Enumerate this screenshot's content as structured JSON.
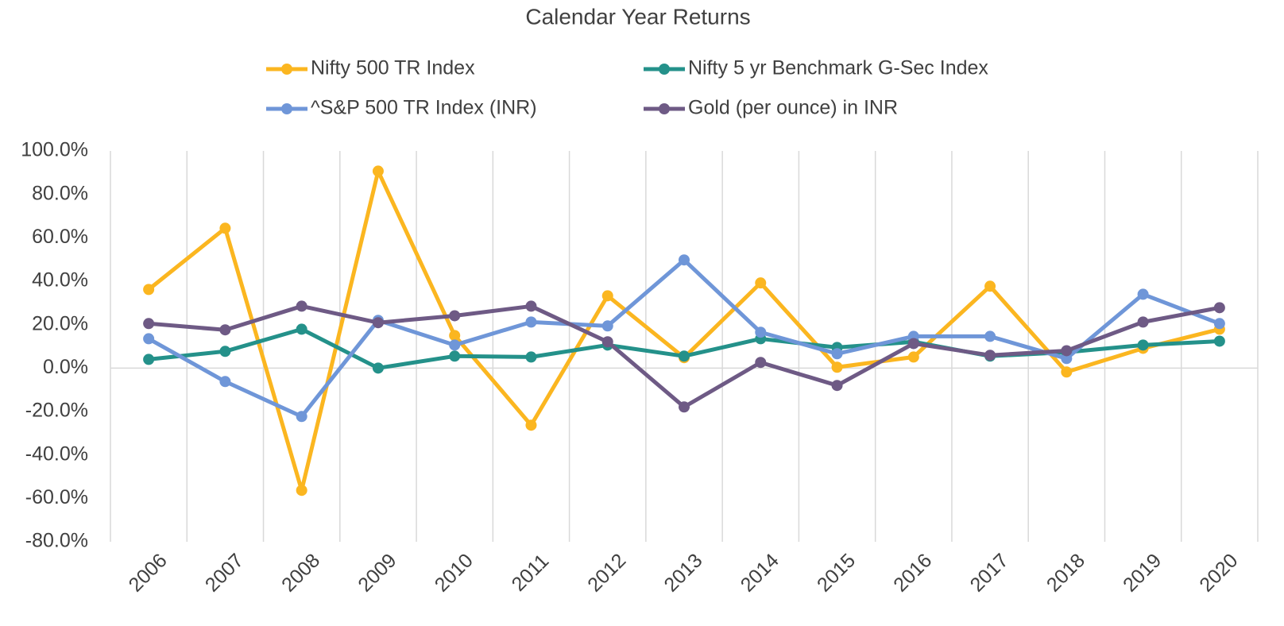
{
  "chart_data": {
    "type": "line",
    "title": "Calendar Year Returns",
    "categories": [
      "2006",
      "2007",
      "2008",
      "2009",
      "2010",
      "2011",
      "2012",
      "2013",
      "2014",
      "2015",
      "2016",
      "2017",
      "2018",
      "2019",
      "2020"
    ],
    "series": [
      {
        "name": "Nifty 500 TR Index",
        "color": "#fbb620",
        "values": [
          36.2,
          64.4,
          -56.3,
          90.7,
          15.0,
          -26.3,
          33.3,
          4.8,
          39.2,
          0.4,
          5.1,
          37.7,
          -1.8,
          9.1,
          17.9
        ]
      },
      {
        "name": "Nifty 5 yr Benchmark G-Sec Index",
        "color": "#24918a",
        "values": [
          4.0,
          7.7,
          17.9,
          0.0,
          5.5,
          5.1,
          10.6,
          5.5,
          13.5,
          9.5,
          12.1,
          5.5,
          7.3,
          10.6,
          12.4
        ]
      },
      {
        "name": "^S&P 500 TR Index (INR)",
        "color": "#6f96d8",
        "values": [
          13.5,
          -6.2,
          -22.3,
          22.0,
          10.6,
          21.2,
          19.4,
          49.8,
          16.5,
          6.6,
          14.6,
          14.6,
          4.4,
          34.0,
          20.5
        ]
      },
      {
        "name": "Gold (per ounce) in INR",
        "color": "#6e5a85",
        "values": [
          20.5,
          17.6,
          28.5,
          20.9,
          24.1,
          28.5,
          12.1,
          -17.9,
          2.6,
          -8.0,
          11.3,
          5.9,
          8.0,
          21.2,
          27.8
        ]
      }
    ],
    "ylim": [
      -80,
      100
    ],
    "yticks": [
      {
        "value": -80,
        "label": "-80.0%"
      },
      {
        "value": -60,
        "label": "-60.0%"
      },
      {
        "value": -40,
        "label": "-40.0%"
      },
      {
        "value": -20,
        "label": "-20.0%"
      },
      {
        "value": 0,
        "label": "0.0%"
      },
      {
        "value": 20,
        "label": "20.0%"
      },
      {
        "value": 40,
        "label": "40.0%"
      },
      {
        "value": 60,
        "label": "60.0%"
      },
      {
        "value": 80,
        "label": "80.0%"
      },
      {
        "value": 100,
        "label": "100.0%"
      }
    ],
    "grid": true,
    "legend": "top"
  }
}
